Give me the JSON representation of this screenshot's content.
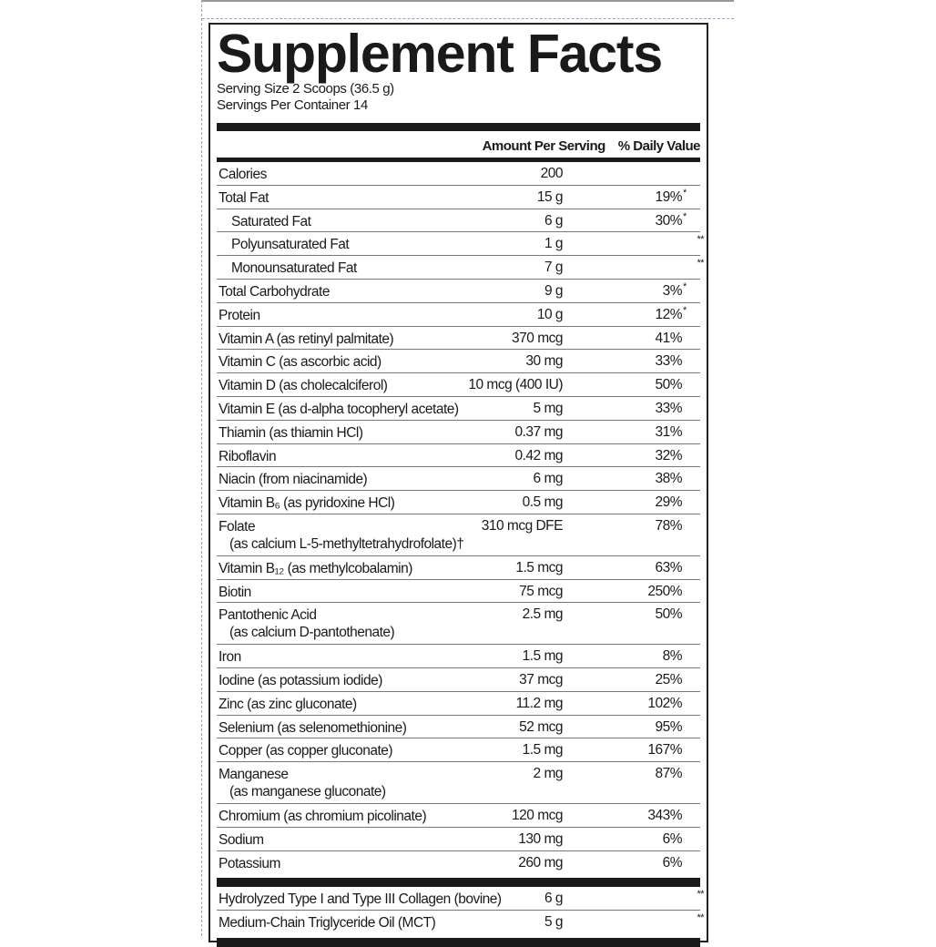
{
  "title": "Supplement Facts",
  "serving_size": "Serving Size 2 Scoops (36.5 g)",
  "servings_per_container": "Servings Per Container 14",
  "header": {
    "amount": "Amount Per Serving",
    "dv": "% Daily Value"
  },
  "rows": [
    {
      "name": "Calories",
      "amount": "200",
      "dv": "",
      "mark": ""
    },
    {
      "name": "Total Fat",
      "amount": "15 g",
      "dv": "19%",
      "mark": "*"
    },
    {
      "name": "Saturated Fat",
      "amount": "6 g",
      "dv": "30%",
      "mark": "*"
    },
    {
      "name": "Polyunsaturated Fat",
      "amount": "1 g",
      "dv": "",
      "mark": "**"
    },
    {
      "name": "Monounsaturated Fat",
      "amount": "7 g",
      "dv": "",
      "mark": "**"
    },
    {
      "name": "Total Carbohydrate",
      "amount": "9 g",
      "dv": "3%",
      "mark": "*"
    },
    {
      "name": "Protein",
      "amount": "10 g",
      "dv": "12%",
      "mark": "*"
    },
    {
      "name": "Vitamin A (as retinyl palmitate)",
      "amount": "370 mcg",
      "dv": "41%",
      "mark": ""
    },
    {
      "name": "Vitamin C (as ascorbic acid)",
      "amount": "30 mg",
      "dv": "33%",
      "mark": ""
    },
    {
      "name": "Vitamin D (as cholecalciferol)",
      "amount": "10 mcg (400 IU)",
      "dv": "50%",
      "mark": ""
    },
    {
      "name": "Vitamin E (as d-alpha tocopheryl acetate)",
      "amount": "5 mg",
      "dv": "33%",
      "mark": ""
    },
    {
      "name": "Thiamin (as thiamin HCl)",
      "amount": "0.37 mg",
      "dv": "31%",
      "mark": ""
    },
    {
      "name": "Riboflavin",
      "amount": "0.42 mg",
      "dv": "32%",
      "mark": ""
    },
    {
      "name": "Niacin (from niacinamide)",
      "amount": "6 mg",
      "dv": "38%",
      "mark": ""
    },
    {
      "name": "Vitamin B₆ (as pyridoxine HCl)",
      "amount": "0.5 mg",
      "dv": "29%",
      "mark": ""
    },
    {
      "name": "Folate\n  (as calcium L-5-methyltetrahydrofolate)†",
      "amount": "310 mcg DFE",
      "dv": "78%",
      "mark": ""
    },
    {
      "name": "Vitamin B₁₂ (as methylcobalamin)",
      "amount": "1.5 mcg",
      "dv": "63%",
      "mark": ""
    },
    {
      "name": "Biotin",
      "amount": "75 mcg",
      "dv": "250%",
      "mark": ""
    },
    {
      "name": "Pantothenic Acid\n  (as calcium D-pantothenate)",
      "amount": "2.5 mg",
      "dv": "50%",
      "mark": ""
    },
    {
      "name": "Iron",
      "amount": "1.5 mg",
      "dv": "8%",
      "mark": ""
    },
    {
      "name": "Iodine (as potassium iodide)",
      "amount": "37 mcg",
      "dv": "25%",
      "mark": ""
    },
    {
      "name": "Zinc (as zinc gluconate)",
      "amount": "11.2 mg",
      "dv": "102%",
      "mark": ""
    },
    {
      "name": "Selenium (as selenomethionine)",
      "amount": "52 mcg",
      "dv": "95%",
      "mark": ""
    },
    {
      "name": "Copper (as copper gluconate)",
      "amount": "1.5 mg",
      "dv": "167%",
      "mark": ""
    },
    {
      "name": "Manganese\n  (as manganese gluconate)",
      "amount": "2 mg",
      "dv": "87%",
      "mark": ""
    },
    {
      "name": "Chromium (as chromium picolinate)",
      "amount": "120 mcg",
      "dv": "343%",
      "mark": ""
    },
    {
      "name": "Sodium",
      "amount": "130 mg",
      "dv": "6%",
      "mark": ""
    },
    {
      "name": "Potassium",
      "amount": "260 mg",
      "dv": "6%",
      "mark": ""
    }
  ],
  "other_rows": [
    {
      "name": "Hydrolyzed Type I and Type III Collagen (bovine)",
      "amount": "6 g",
      "dv": "",
      "mark": "**"
    },
    {
      "name": "Medium-Chain Triglyceride Oil (MCT)",
      "amount": "5 g",
      "dv": "",
      "mark": "**"
    }
  ]
}
